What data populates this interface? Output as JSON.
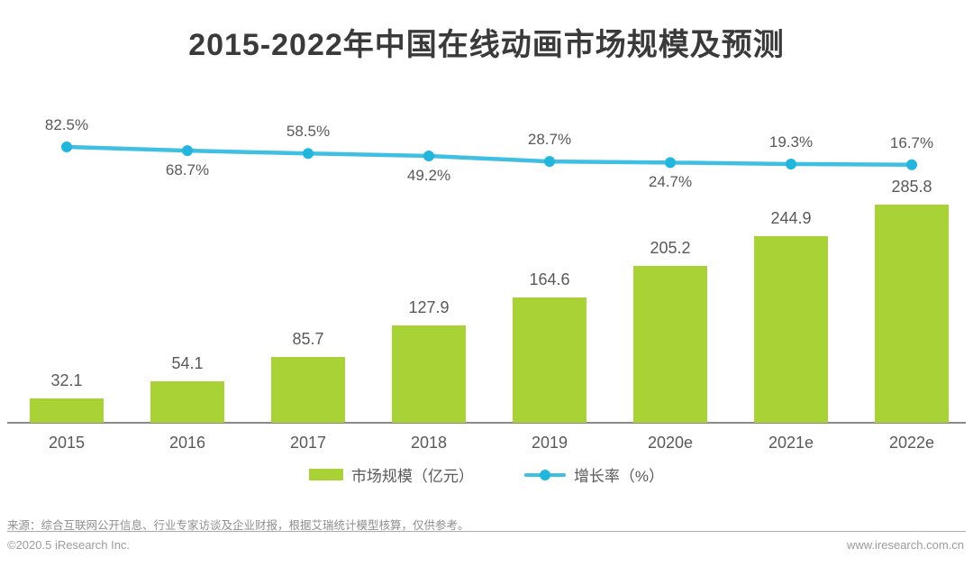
{
  "title": "2015-2022年中国在线动画市场规模及预测",
  "chart_data": {
    "type": "bar",
    "title": "2015-2022年中国在线动画市场规模及预测",
    "categories": [
      "2015",
      "2016",
      "2017",
      "2018",
      "2019",
      "2020e",
      "2021e",
      "2022e"
    ],
    "series": [
      {
        "name": "市场规模（亿元）",
        "type": "bar",
        "values": [
          32.1,
          54.1,
          85.7,
          127.9,
          164.6,
          205.2,
          244.9,
          285.8
        ]
      },
      {
        "name": "增长率（%）",
        "type": "line",
        "values": [
          82.5,
          68.7,
          58.5,
          49.2,
          28.7,
          24.7,
          19.3,
          16.7
        ],
        "value_suffix": "%",
        "label_positions": [
          "above",
          "below",
          "above",
          "below",
          "above",
          "below",
          "above",
          "above"
        ]
      }
    ],
    "xlabel": "",
    "ylabel": "",
    "ylim": [
      0,
      300
    ],
    "grid": false,
    "legend_position": "bottom"
  },
  "legend": {
    "market_label": "市场规模（亿元）",
    "growth_label": "增长率（%）"
  },
  "footer": {
    "source": "来源：综合互联网公开信息、行业专家访谈及企业财报，根据艾瑞统计模型核算，仅供参考。",
    "copyright": "©2020.5 iResearch Inc.",
    "website": "www.iresearch.com.cn"
  },
  "colors": {
    "bar": "#a8d235",
    "line": "#3fbfe2",
    "marker": "#22b5dd",
    "label": "#595959",
    "axis": "#8a8a8a",
    "title": "#3a3a3a",
    "footer": "#8f8f8f"
  }
}
